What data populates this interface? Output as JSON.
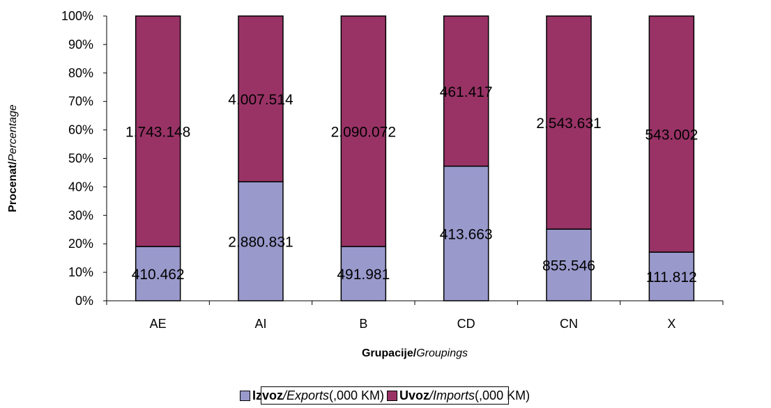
{
  "chart_data": {
    "type": "bar",
    "stacked": "percent",
    "categories": [
      "AE",
      "AI",
      "B",
      "CD",
      "CN",
      "X"
    ],
    "series": [
      {
        "name": "Izvoz/Exports (,000 KM)",
        "color": "#9999cc",
        "values": [
          410462,
          2880831,
          491981,
          413663,
          855546,
          111812
        ],
        "labels": [
          "410.462",
          "2.880.831",
          "491.981",
          "413.663",
          "855.546",
          "111.812"
        ]
      },
      {
        "name": "Uvoz/Imports (,000 KM)",
        "color": "#993366",
        "values": [
          1743148,
          4007514,
          2090072,
          461417,
          2543631,
          543002
        ],
        "labels": [
          "1.743.148",
          "4.007.514",
          "2.090.072",
          "461.417",
          "2.543.631",
          "543.002"
        ]
      }
    ],
    "yticks": [
      "0%",
      "10%",
      "20%",
      "30%",
      "40%",
      "50%",
      "60%",
      "70%",
      "80%",
      "90%",
      "100%"
    ],
    "ylim": [
      0,
      100
    ],
    "xlabel": {
      "bold": "Grupacije/",
      "italic": "Groupings"
    },
    "ylabel": {
      "bold": "Procenat/",
      "italic": "Percentage"
    },
    "legend": {
      "position": "bottom",
      "items": [
        {
          "bold": "Izvoz",
          "italic": "/Exports",
          "rest": " (,000 KM)",
          "color": "#9999cc"
        },
        {
          "bold": "Uvoz",
          "italic": "/Imports",
          "rest": " (,000 KM)",
          "color": "#993366"
        }
      ]
    }
  }
}
